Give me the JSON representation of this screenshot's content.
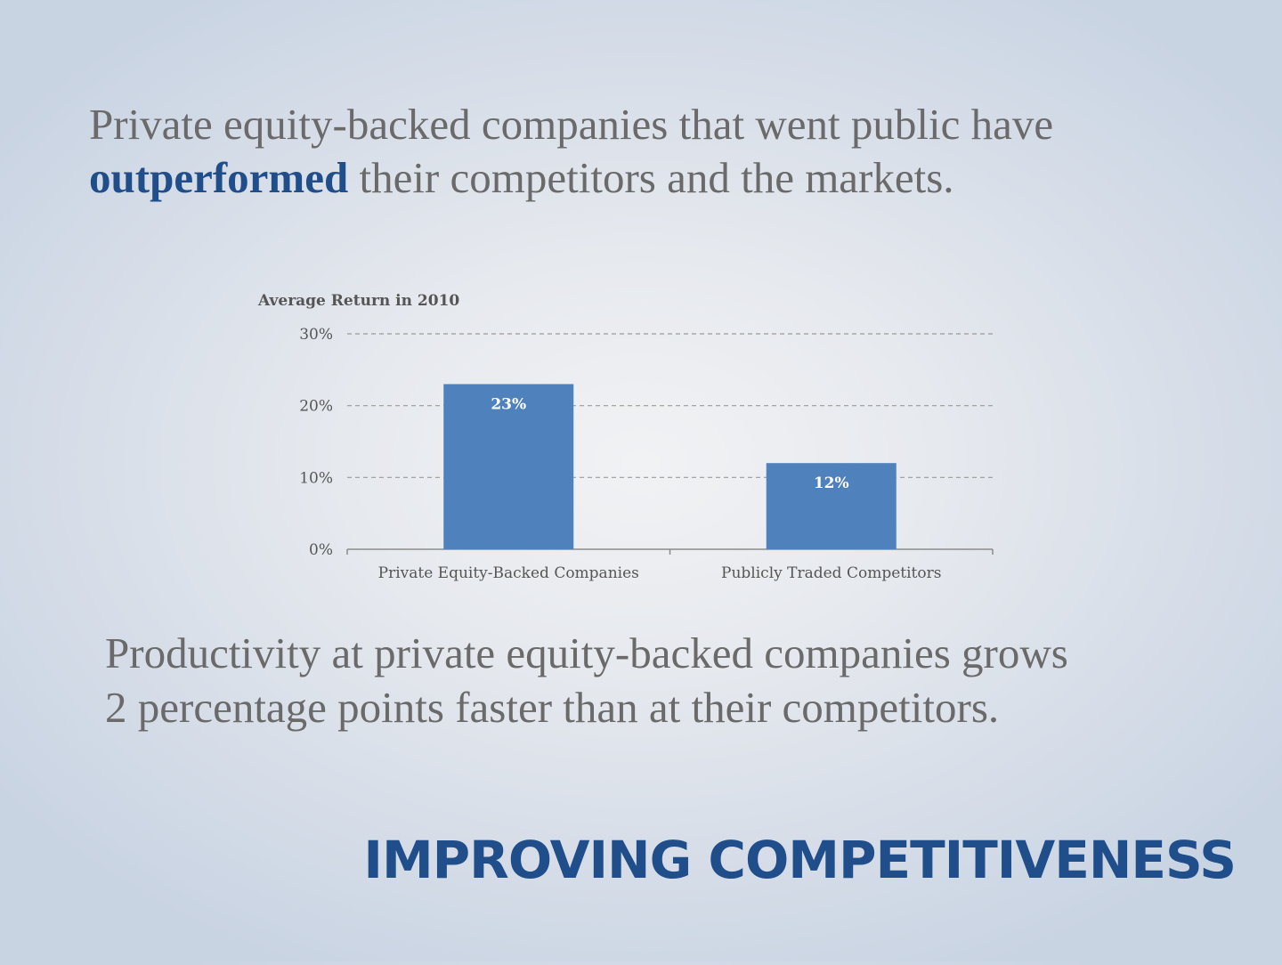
{
  "headline": {
    "prefix": "Private equity-backed companies that went public have",
    "emphasis": "outperformed",
    "suffix": " their competitors and the markets."
  },
  "body_text": {
    "line1": "Productivity at private equity-backed companies grows",
    "line2": "2 percentage points faster than at their competitors."
  },
  "slide_title": "IMPROVING COMPETITIVENESS",
  "colors": {
    "accent": "#1f4e8a",
    "bar": "#4f81bd",
    "text": "#6a6a6a"
  },
  "chart_data": {
    "type": "bar",
    "title": "Average Return in 2010",
    "xlabel": "",
    "ylabel": "",
    "categories": [
      "Private Equity-Backed Companies",
      "Publicly Traded Competitors"
    ],
    "values": [
      23,
      12
    ],
    "data_labels": [
      "23%",
      "12%"
    ],
    "ylim": [
      0,
      30
    ],
    "yticks": [
      0,
      10,
      20,
      30
    ],
    "ytick_labels": [
      "0%",
      "10%",
      "20%",
      "30%"
    ],
    "grid": true,
    "grid_style": "dashed",
    "legend": "none"
  }
}
